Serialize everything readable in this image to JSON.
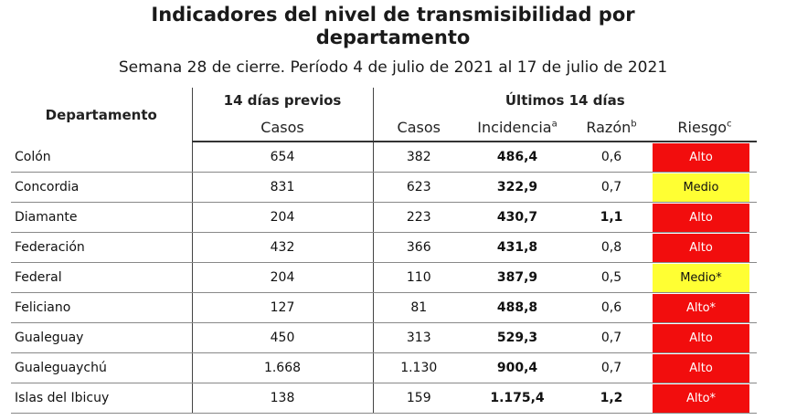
{
  "title_line1": "Indicadores del nivel de transmisibilidad por",
  "title_line2": "departamento",
  "subtitle": "Semana 28 de cierre. Período 4 de julio de 2021 al 17 de julio de 2021",
  "headers": {
    "departamento": "Departamento",
    "previos_group": "14 días previos",
    "ultimos_group": "Últimos 14 días",
    "casos_prev": "Casos",
    "casos": "Casos",
    "incidencia": "Incidencia",
    "incidencia_sup": "a",
    "razon": "Razón",
    "razon_sup": "b",
    "riesgo": "Riesgo",
    "riesgo_sup": "c"
  },
  "colors": {
    "alto": "#f20d0d",
    "medio": "#ffff33"
  },
  "rows": [
    {
      "dept": "Colón",
      "casos_prev": "654",
      "casos": "382",
      "incidencia": "486,4",
      "razon": "0,6",
      "razon_bold": false,
      "riesgo": "Alto",
      "level": "alto"
    },
    {
      "dept": "Concordia",
      "casos_prev": "831",
      "casos": "623",
      "incidencia": "322,9",
      "razon": "0,7",
      "razon_bold": false,
      "riesgo": "Medio",
      "level": "medio"
    },
    {
      "dept": "Diamante",
      "casos_prev": "204",
      "casos": "223",
      "incidencia": "430,7",
      "razon": "1,1",
      "razon_bold": true,
      "riesgo": "Alto",
      "level": "alto"
    },
    {
      "dept": "Federación",
      "casos_prev": "432",
      "casos": "366",
      "incidencia": "431,8",
      "razon": "0,8",
      "razon_bold": false,
      "riesgo": "Alto",
      "level": "alto"
    },
    {
      "dept": "Federal",
      "casos_prev": "204",
      "casos": "110",
      "incidencia": "387,9",
      "razon": "0,5",
      "razon_bold": false,
      "riesgo": "Medio*",
      "level": "medio"
    },
    {
      "dept": "Feliciano",
      "casos_prev": "127",
      "casos": "81",
      "incidencia": "488,8",
      "razon": "0,6",
      "razon_bold": false,
      "riesgo": "Alto*",
      "level": "alto"
    },
    {
      "dept": "Gualeguay",
      "casos_prev": "450",
      "casos": "313",
      "incidencia": "529,3",
      "razon": "0,7",
      "razon_bold": false,
      "riesgo": "Alto",
      "level": "alto"
    },
    {
      "dept": "Gualeguaychú",
      "casos_prev": "1.668",
      "casos": "1.130",
      "incidencia": "900,4",
      "razon": "0,7",
      "razon_bold": false,
      "riesgo": "Alto",
      "level": "alto"
    },
    {
      "dept": "Islas del Ibicuy",
      "casos_prev": "138",
      "casos": "159",
      "incidencia": "1.175,4",
      "razon": "1,2",
      "razon_bold": true,
      "riesgo": "Alto*",
      "level": "alto"
    }
  ]
}
